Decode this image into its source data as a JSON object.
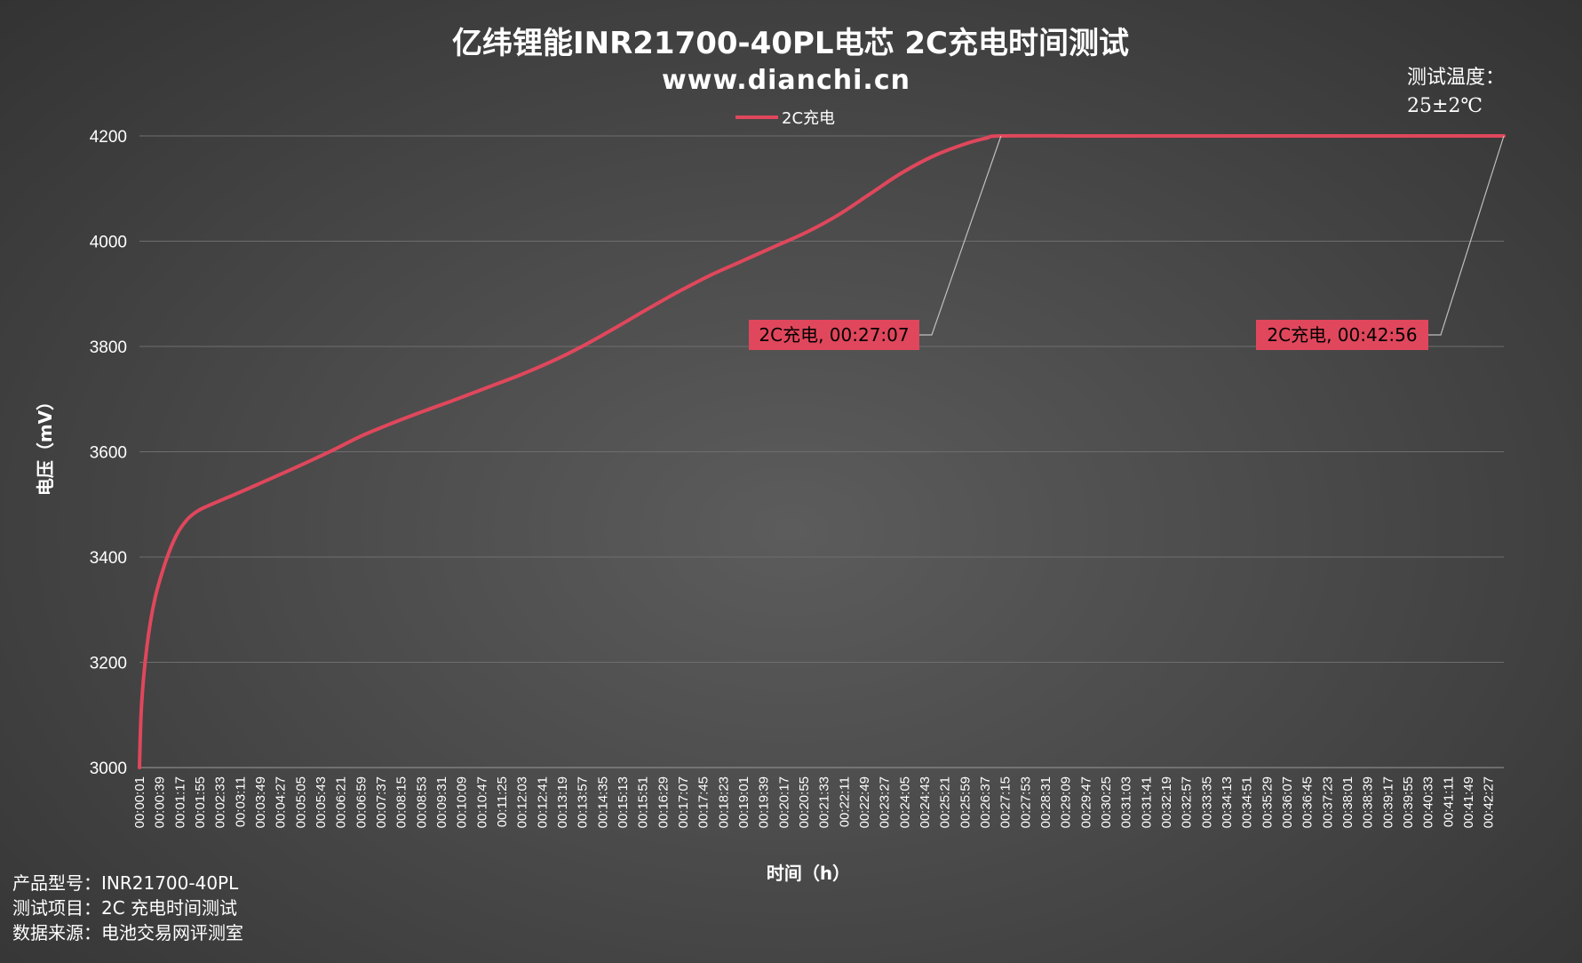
{
  "info_lines": [
    "产品型号：INR21700-40PL",
    "测试项目：2C 充电时间测试",
    "数据来源：电池交易网评测室"
  ],
  "temp_note": [
    "测试温度：",
    "25±2℃"
  ],
  "chart_data": {
    "type": "line",
    "title": "亿纬锂能INR21700-40PL电芯 2C充电时间测试",
    "subtitle": "www.dianchi.cn",
    "xlabel": "时间（h）",
    "ylabel": "电压（mV）",
    "ylim": [
      3000,
      4200
    ],
    "yticks": [
      3000,
      3200,
      3400,
      3600,
      3800,
      4000,
      4200
    ],
    "grid": true,
    "legend_position": "top-center",
    "x_range_seconds": [
      1,
      2576
    ],
    "xticks": [
      "00:00:01",
      "00:00:39",
      "00:01:17",
      "00:01:55",
      "00:02:33",
      "00:03:11",
      "00:03:49",
      "00:04:27",
      "00:05:05",
      "00:05:43",
      "00:06:21",
      "00:06:59",
      "00:07:37",
      "00:08:15",
      "00:08:53",
      "00:09:31",
      "00:10:09",
      "00:10:47",
      "00:11:25",
      "00:12:03",
      "00:12:41",
      "00:13:19",
      "00:13:57",
      "00:14:35",
      "00:15:13",
      "00:15:51",
      "00:16:29",
      "00:17:07",
      "00:17:45",
      "00:18:23",
      "00:19:01",
      "00:19:39",
      "00:20:17",
      "00:20:55",
      "00:21:33",
      "00:22:11",
      "00:22:49",
      "00:23:27",
      "00:24:05",
      "00:24:43",
      "00:25:21",
      "00:25:59",
      "00:26:37",
      "00:27:15",
      "00:27:53",
      "00:28:31",
      "00:29:09",
      "00:29:47",
      "00:30:25",
      "00:31:03",
      "00:31:41",
      "00:32:19",
      "00:32:57",
      "00:33:35",
      "00:34:13",
      "00:34:51",
      "00:35:29",
      "00:36:07",
      "00:36:45",
      "00:37:23",
      "00:38:01",
      "00:38:39",
      "00:39:17",
      "00:39:55",
      "00:40:33",
      "00:41:11",
      "00:41:49",
      "00:42:27"
    ],
    "series": [
      {
        "name": "2C充电",
        "color": "#e0475c",
        "x": [
          "00:00:01",
          "00:00:05",
          "00:00:15",
          "00:00:30",
          "00:00:50",
          "00:01:10",
          "00:01:30",
          "00:01:50",
          "00:02:10",
          "00:02:40",
          "00:03:15",
          "00:04:00",
          "00:05:00",
          "00:06:00",
          "00:07:00",
          "00:08:00",
          "00:09:00",
          "00:10:00",
          "00:11:00",
          "00:12:00",
          "00:13:00",
          "00:14:00",
          "00:15:00",
          "00:16:00",
          "00:17:00",
          "00:18:00",
          "00:19:00",
          "00:20:00",
          "00:21:00",
          "00:22:00",
          "00:23:00",
          "00:24:00",
          "00:25:00",
          "00:26:00",
          "00:26:40",
          "00:27:07",
          "00:30:00",
          "00:35:00",
          "00:40:00",
          "00:42:56"
        ],
        "values": [
          3000,
          3120,
          3230,
          3320,
          3390,
          3440,
          3470,
          3487,
          3497,
          3510,
          3525,
          3545,
          3572,
          3600,
          3630,
          3655,
          3678,
          3700,
          3723,
          3746,
          3772,
          3802,
          3836,
          3871,
          3905,
          3936,
          3963,
          3990,
          4017,
          4050,
          4090,
          4130,
          4162,
          4185,
          4196,
          4200,
          4200,
          4200,
          4200,
          4200
        ]
      }
    ],
    "annotations": [
      {
        "label": "2C充电, 00:27:07",
        "x": "00:27:07",
        "y": 4200
      },
      {
        "label": "2C充电, 00:42:56",
        "x": "00:42:56",
        "y": 4200
      }
    ]
  }
}
